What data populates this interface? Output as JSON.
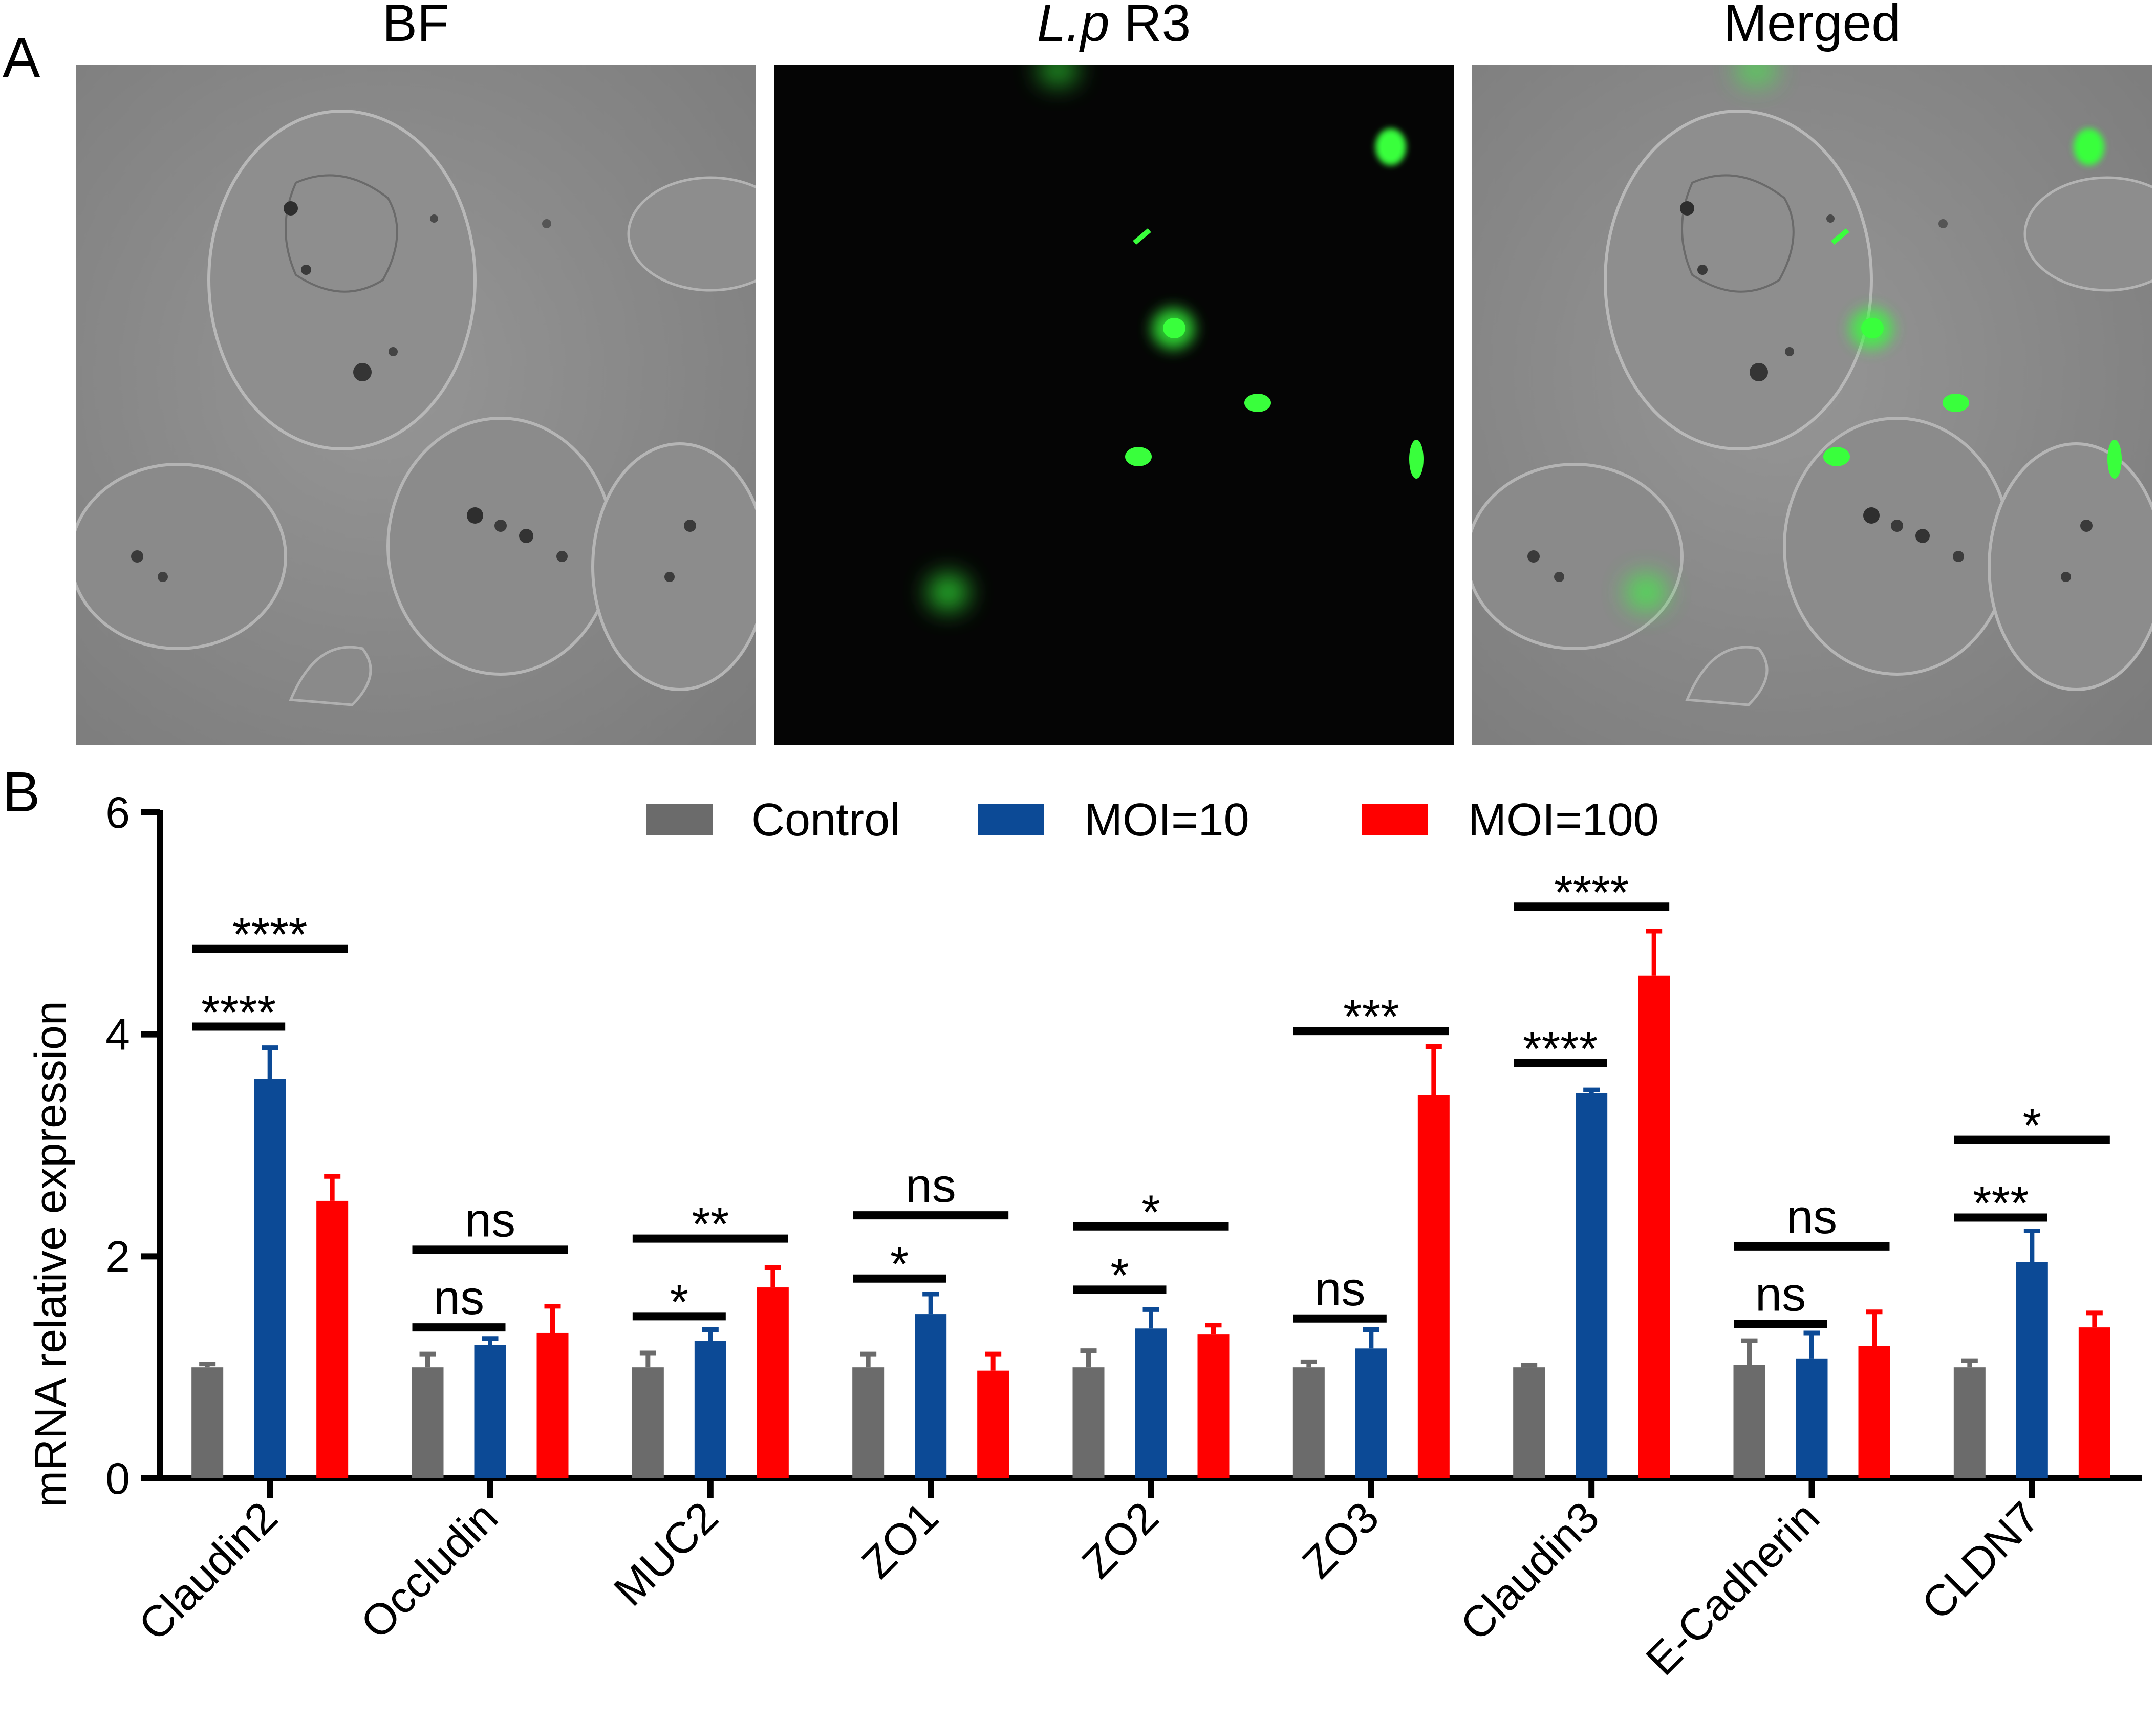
{
  "panel_a": {
    "letter": "A",
    "images": [
      {
        "title": "BF",
        "kind": "brightfield"
      },
      {
        "title_italic": "L.p",
        "title_rest": " R3",
        "kind": "fluorescence"
      },
      {
        "title": "Merged",
        "kind": "merged"
      }
    ],
    "colors": {
      "brightfield_bg": "#8c8c8c",
      "fluorescence_bg": "#050505",
      "signal": "#39ff3c"
    }
  },
  "panel_b": {
    "letter": "B"
  },
  "chart_data": {
    "type": "bar",
    "title": "",
    "xlabel": "",
    "ylabel": "mRNA relative expression",
    "ylim": [
      0,
      6
    ],
    "yticks": [
      "0",
      "2",
      "4",
      "6"
    ],
    "grid": false,
    "legend_position": "top",
    "categories": [
      "Claudin2",
      "Occludin",
      "MUC2",
      "ZO1",
      "ZO2",
      "ZO3",
      "Claudin3",
      "E-Cadherin",
      "CLDN7"
    ],
    "series": [
      {
        "name": "Control",
        "color": "#6b6b6b",
        "values": [
          1.0,
          1.0,
          1.0,
          1.0,
          1.0,
          1.0,
          1.0,
          1.02,
          1.0
        ],
        "errors": [
          0.03,
          0.12,
          0.13,
          0.12,
          0.15,
          0.05,
          0.02,
          0.22,
          0.06
        ]
      },
      {
        "name": "MOI=10",
        "color": "#0c4a96",
        "values": [
          3.6,
          1.2,
          1.24,
          1.48,
          1.35,
          1.17,
          3.47,
          1.08,
          1.95
        ],
        "errors": [
          0.28,
          0.06,
          0.1,
          0.18,
          0.17,
          0.17,
          0.03,
          0.23,
          0.28
        ]
      },
      {
        "name": "MOI=100",
        "color": "#ff0000",
        "values": [
          2.5,
          1.31,
          1.72,
          0.97,
          1.3,
          3.45,
          4.53,
          1.19,
          1.36
        ],
        "errors": [
          0.22,
          0.24,
          0.18,
          0.15,
          0.08,
          0.44,
          0.4,
          0.31,
          0.13
        ]
      }
    ],
    "annotations": [
      {
        "category": "Claudin2",
        "compare": "MOI=10",
        "label": "****",
        "y": 4.07
      },
      {
        "category": "Claudin2",
        "compare": "MOI=100",
        "label": "****",
        "y": 4.77
      },
      {
        "category": "Occludin",
        "compare": "MOI=10",
        "label": "ns",
        "y": 1.36
      },
      {
        "category": "Occludin",
        "compare": "MOI=100",
        "label": "ns",
        "y": 2.06
      },
      {
        "category": "MUC2",
        "compare": "MOI=10",
        "label": "*",
        "y": 1.46
      },
      {
        "category": "MUC2",
        "compare": "MOI=100",
        "label": "**",
        "y": 2.16
      },
      {
        "category": "ZO1",
        "compare": "MOI=10",
        "label": "*",
        "y": 1.8
      },
      {
        "category": "ZO1",
        "compare": "MOI=100",
        "label": "ns",
        "y": 2.37
      },
      {
        "category": "ZO2",
        "compare": "MOI=10",
        "label": "*",
        "y": 1.7
      },
      {
        "category": "ZO2",
        "compare": "MOI=100",
        "label": "*",
        "y": 2.27
      },
      {
        "category": "ZO3",
        "compare": "MOI=10",
        "label": "ns",
        "y": 1.44
      },
      {
        "category": "ZO3",
        "compare": "MOI=100",
        "label": "***",
        "y": 4.03
      },
      {
        "category": "Claudin3",
        "compare": "MOI=10",
        "label": "****",
        "y": 3.74
      },
      {
        "category": "Claudin3",
        "compare": "MOI=100",
        "label": "****",
        "y": 5.15
      },
      {
        "category": "E-Cadherin",
        "compare": "MOI=10",
        "label": "ns",
        "y": 1.39
      },
      {
        "category": "E-Cadherin",
        "compare": "MOI=100",
        "label": "ns",
        "y": 2.09
      },
      {
        "category": "CLDN7",
        "compare": "MOI=10",
        "label": "***",
        "y": 2.35
      },
      {
        "category": "CLDN7",
        "compare": "MOI=100",
        "label": "*",
        "y": 3.05
      }
    ]
  }
}
